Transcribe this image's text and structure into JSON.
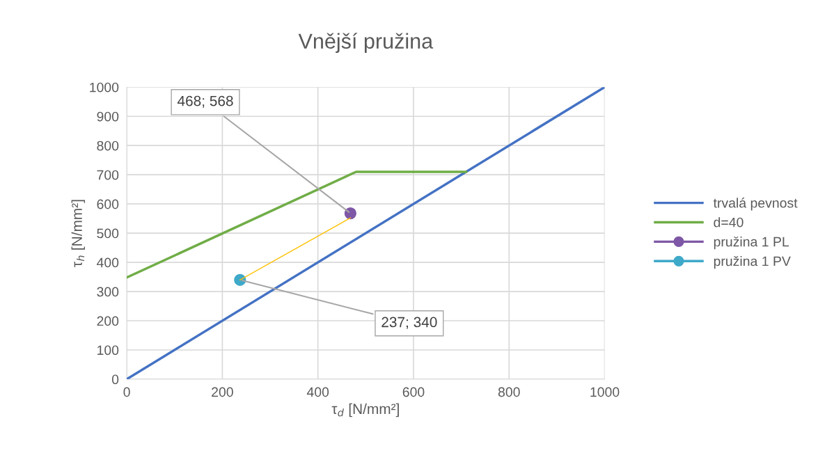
{
  "chart_data": {
    "type": "line",
    "title": "Vnější pružina",
    "xlabel": "τ$_{d}$ [N/mm²]",
    "ylabel": "τ$_{h}$ [N/mm²]",
    "xlim": [
      0,
      1000
    ],
    "ylim": [
      0,
      1000
    ],
    "xticks": [
      0,
      200,
      400,
      600,
      800,
      1000
    ],
    "yticks": [
      0,
      100,
      200,
      300,
      400,
      500,
      600,
      700,
      800,
      900,
      1000
    ],
    "grid": true,
    "legend": "right",
    "series": [
      {
        "name": "trvalá pevnost",
        "color": "#4472c4",
        "x": [
          0,
          1000
        ],
        "values": [
          0,
          1000
        ],
        "marker": "none"
      },
      {
        "name": "d=40",
        "color": "#70ad47",
        "x": [
          0,
          480,
          710
        ],
        "values": [
          348,
          710,
          710
        ],
        "marker": "none"
      },
      {
        "name": "pružina 1 PL",
        "type": "scatter",
        "color": "#7e57a6",
        "x": [
          468
        ],
        "values": [
          568
        ],
        "marker": "circle"
      },
      {
        "name": "pružina 1 PV",
        "type": "scatter",
        "color": "#3fa9c9",
        "x": [
          237
        ],
        "values": [
          340
        ],
        "marker": "circle"
      },
      {
        "type": "line",
        "color": "#ffc000",
        "x": [
          237,
          468
        ],
        "values": [
          340,
          552
        ],
        "marker": "none"
      }
    ],
    "annotations": [
      {
        "text": "468; 568",
        "x": 468,
        "y": 568
      },
      {
        "text": "237; 340",
        "x": 237,
        "y": 340
      }
    ]
  }
}
